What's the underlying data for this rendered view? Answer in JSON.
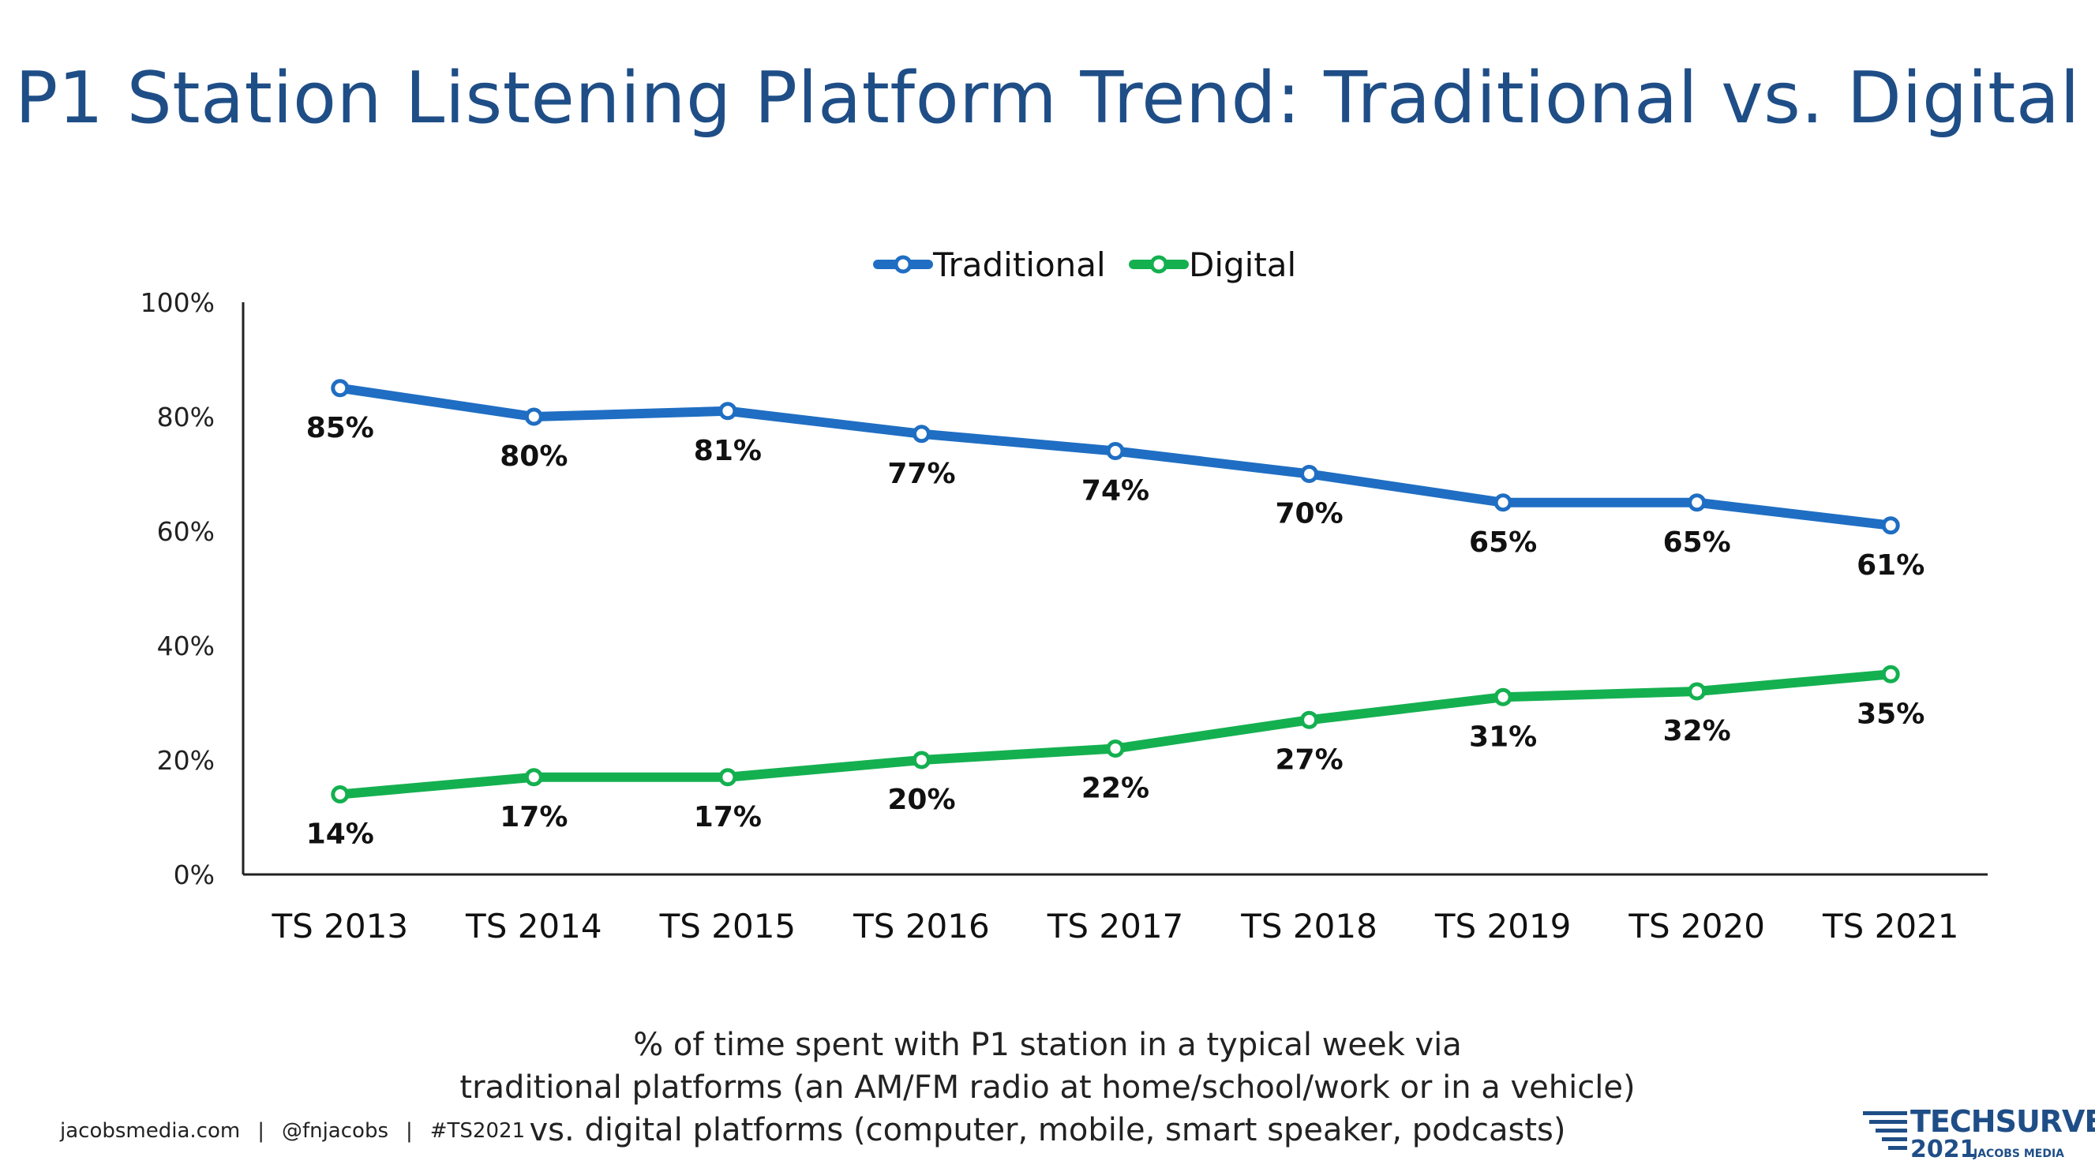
{
  "title": "P1 Station Listening Platform Trend: Traditional vs. Digital",
  "chart_data": {
    "type": "line",
    "categories": [
      "TS 2013",
      "TS 2014",
      "TS 2015",
      "TS 2016",
      "TS 2017",
      "TS 2018",
      "TS 2019",
      "TS 2020",
      "TS 2021"
    ],
    "series": [
      {
        "name": "Traditional",
        "color": "#1f6ec3",
        "values": [
          85,
          80,
          81,
          77,
          74,
          70,
          65,
          65,
          61
        ]
      },
      {
        "name": "Digital",
        "color": "#14b050",
        "values": [
          14,
          17,
          17,
          20,
          22,
          27,
          31,
          32,
          35
        ]
      }
    ],
    "y_ticks": [
      "0%",
      "20%",
      "40%",
      "60%",
      "80%",
      "100%"
    ],
    "ylim": [
      0,
      100
    ],
    "data_label_suffix": "%",
    "legend": "top-center",
    "grid": false
  },
  "caption": {
    "line1": "% of time spent with P1 station in a typical week via",
    "line2": "traditional platforms (an AM/FM radio at home/school/work or in a vehicle)",
    "line3": "vs. digital platforms (computer, mobile, smart speaker, podcasts)"
  },
  "footer": {
    "site": "jacobsmedia.com",
    "handle": "@fnjacobs",
    "hashtag": "#TS2021"
  },
  "logo": {
    "brand": "TECHSURVEY",
    "year": "2021",
    "sub": "JACOBS MEDIA"
  }
}
